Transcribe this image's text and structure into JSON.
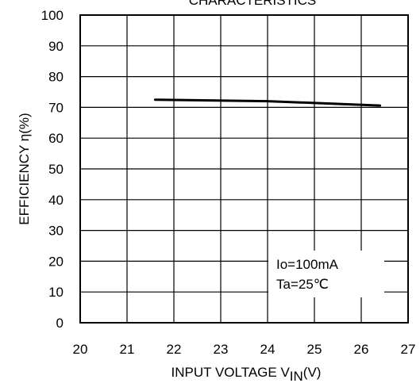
{
  "chart_data": {
    "type": "line",
    "title": "CHARACTERISTICS",
    "xlabel": "INPUT VOLTAGE V",
    "xlabel_sub": "IN",
    "xlabel_unit": "(V)",
    "ylabel": "EFFICIENCY η(%)",
    "xlim": [
      20,
      27
    ],
    "ylim": [
      0,
      100
    ],
    "x_ticks": [
      "20",
      "21",
      "22",
      "23",
      "24",
      "25",
      "26",
      "27"
    ],
    "y_ticks": [
      "0",
      "10",
      "20",
      "30",
      "40",
      "50",
      "60",
      "70",
      "80",
      "90",
      "100"
    ],
    "grid": true,
    "series": [
      {
        "x": [
          21.6,
          24.0,
          26.4
        ],
        "y": [
          72.5,
          72.0,
          70.6
        ]
      }
    ],
    "annotations": [
      "Io=100mA",
      "Ta=25℃"
    ]
  }
}
